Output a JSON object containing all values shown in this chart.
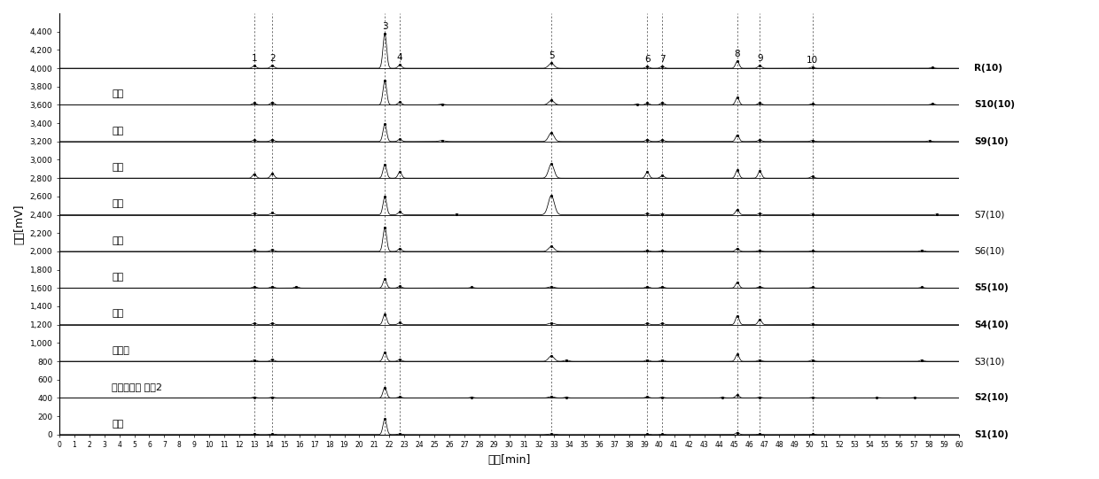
{
  "title": "",
  "xlabel": "时间[min]",
  "ylabel": "信号[mV]",
  "ylim": [
    0,
    4600
  ],
  "xlim": [
    0,
    60
  ],
  "yticks": [
    0,
    200,
    400,
    600,
    800,
    1000,
    1200,
    1400,
    1600,
    1800,
    2000,
    2200,
    2400,
    2600,
    2800,
    3000,
    3200,
    3400,
    3600,
    3800,
    4000,
    4200,
    4400
  ],
  "xticks": [
    0,
    1,
    2,
    3,
    4,
    5,
    6,
    7,
    8,
    9,
    10,
    11,
    12,
    13,
    14,
    15,
    16,
    17,
    18,
    19,
    20,
    21,
    22,
    23,
    24,
    25,
    26,
    27,
    28,
    29,
    30,
    31,
    32,
    33,
    34,
    35,
    36,
    37,
    38,
    39,
    40,
    41,
    42,
    43,
    44,
    45,
    46,
    47,
    48,
    49,
    50,
    51,
    52,
    53,
    54,
    55,
    56,
    57,
    58,
    59,
    60
  ],
  "sample_labels_right": [
    "S1(10)",
    "S2(10)",
    "S3(10)",
    "S4(10)",
    "S5(10)",
    "S6(10)",
    "S7(10)",
    "S9(10)",
    "S10(10)",
    "R(10)"
  ],
  "sample_chinese": [
    "桂林",
    "三加皮饮片 产地2",
    "防城港",
    "赣州",
    "揭阳",
    "金秀",
    "乐山",
    "鞅州",
    "汕头",
    "阳瀰"
  ],
  "peak_times": [
    13.0,
    14.2,
    21.7,
    22.7,
    32.8,
    39.2,
    40.2,
    45.2,
    46.7,
    50.2
  ],
  "peak_labels": [
    "1",
    "2",
    "3",
    "4",
    "5",
    "6",
    "7",
    "8",
    "9",
    "10"
  ],
  "bg_color": "#ffffff"
}
